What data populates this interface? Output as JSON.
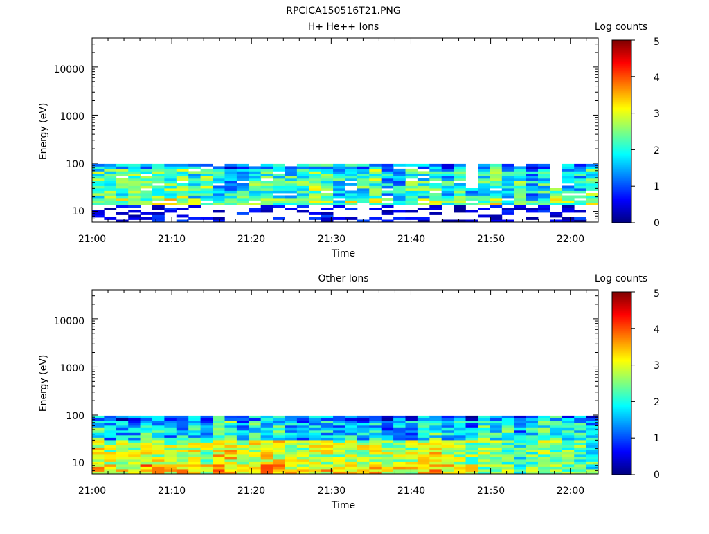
{
  "figure": {
    "title": "RPCICA150516T21.PNG"
  },
  "chart_data": [
    {
      "type": "heatmap",
      "title": "H+ He++ Ions",
      "xlabel": "Time",
      "ylabel": "Energy (eV)",
      "x_tick_labels": [
        "21:00",
        "21:10",
        "21:20",
        "21:30",
        "21:40",
        "21:50",
        "22:00"
      ],
      "x_range_minutes": [
        0,
        63.5
      ],
      "y_scale": "log",
      "y_range": [
        6,
        40000
      ],
      "y_tick_values": [
        10,
        100,
        1000,
        10000
      ],
      "y_tick_labels": [
        "10",
        "100",
        "1000",
        "10000"
      ],
      "colorbar": {
        "label": "Log counts",
        "range": [
          0,
          5
        ],
        "tick_labels": [
          "0",
          "1",
          "2",
          "3",
          "4",
          "5"
        ]
      },
      "colormap": [
        "#00007f",
        "#0000ff",
        "#007fff",
        "#00ffff",
        "#7fff7f",
        "#ffff00",
        "#ff7f00",
        "#ff0000",
        "#7f0000"
      ],
      "data_energy_max_eV": 97,
      "low_energy_cutoff_eV": 13,
      "typical_log_counts": {
        "above_13_eV": [
          1.2,
          2.8
        ],
        "below_13_eV": [
          0.2,
          1.0
        ]
      },
      "grid": false
    },
    {
      "type": "heatmap",
      "title": "Other Ions",
      "xlabel": "Time",
      "ylabel": "Energy (eV)",
      "x_tick_labels": [
        "21:00",
        "21:10",
        "21:20",
        "21:30",
        "21:40",
        "21:50",
        "22:00"
      ],
      "x_range_minutes": [
        0,
        63.5
      ],
      "y_scale": "log",
      "y_range": [
        6,
        40000
      ],
      "y_tick_values": [
        10,
        100,
        1000,
        10000
      ],
      "y_tick_labels": [
        "10",
        "100",
        "1000",
        "10000"
      ],
      "colorbar": {
        "label": "Log counts",
        "range": [
          0,
          5
        ],
        "tick_labels": [
          "0",
          "1",
          "2",
          "3",
          "4",
          "5"
        ]
      },
      "colormap": [
        "#00007f",
        "#0000ff",
        "#007fff",
        "#00ffff",
        "#7fff7f",
        "#ffff00",
        "#ff7f00",
        "#ff0000",
        "#7f0000"
      ],
      "data_energy_max_eV": 97,
      "typical_log_counts": {
        "above_30_eV": [
          1.0,
          2.6
        ],
        "below_30_eV": [
          2.2,
          3.6
        ]
      },
      "grid": false
    }
  ]
}
